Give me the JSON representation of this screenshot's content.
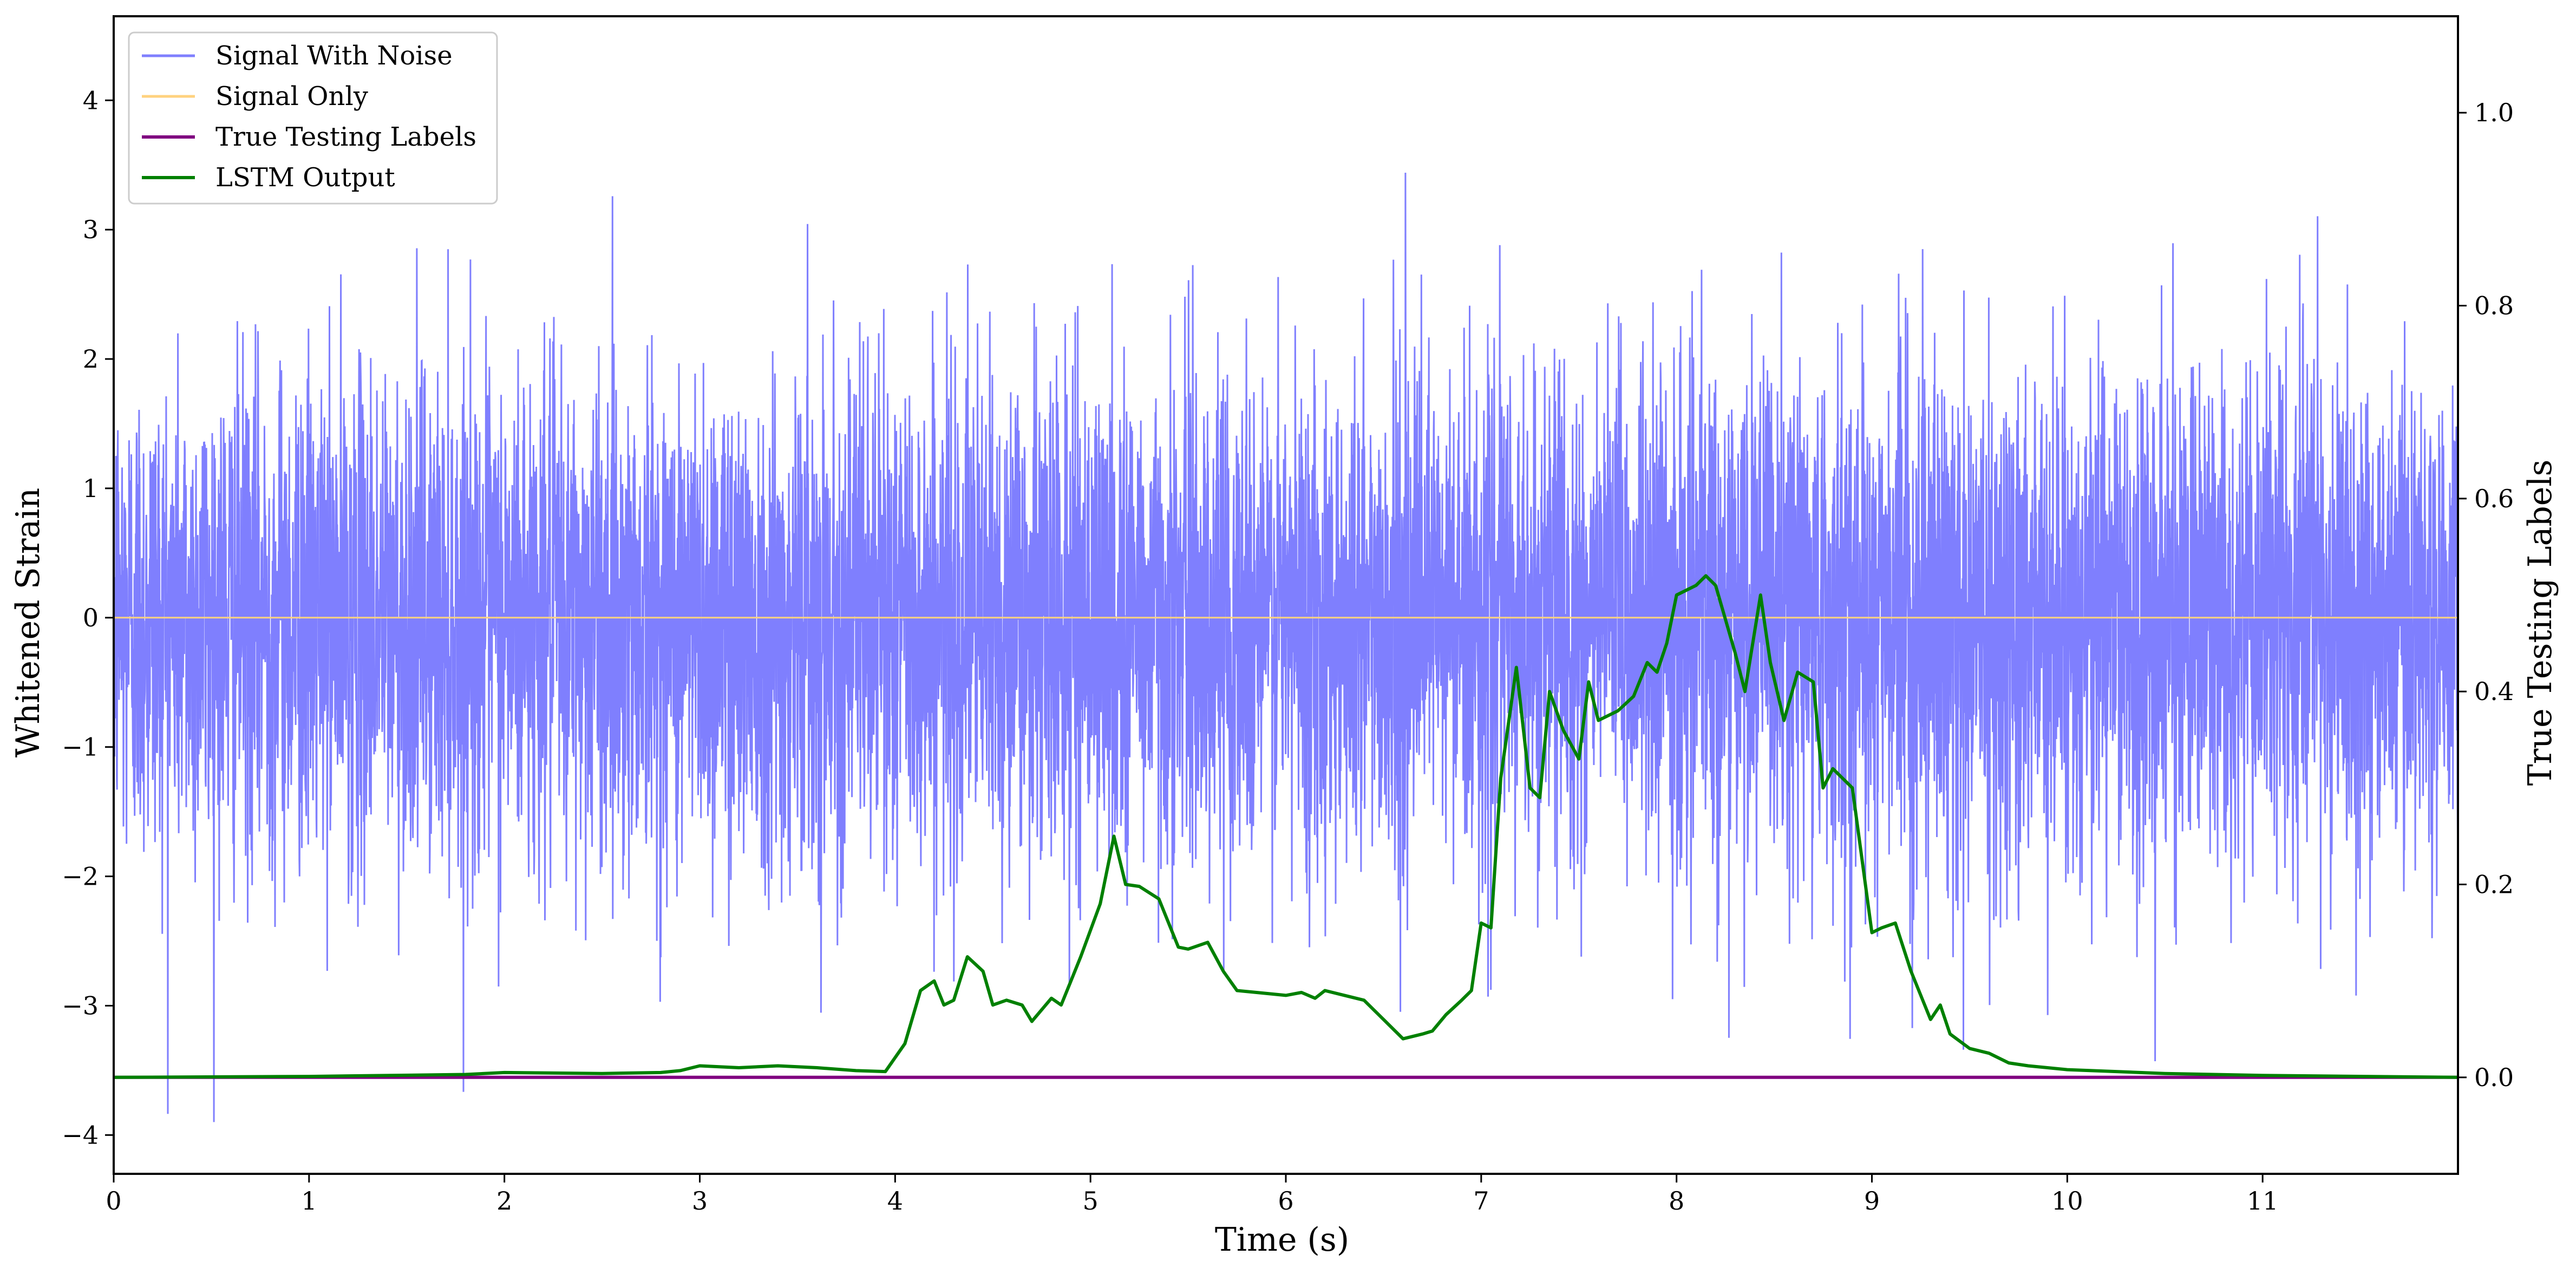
{
  "chart_data": {
    "type": "line",
    "xlabel": "Time (s)",
    "ylabel": "Whitened Strain",
    "y2label": "True Testing Labels",
    "xlim": [
      0,
      12
    ],
    "ylim": [
      -4.3,
      4.65
    ],
    "y2lim": [
      -0.1,
      1.1
    ],
    "xticks": [
      "0",
      "1",
      "2",
      "3",
      "4",
      "5",
      "6",
      "7",
      "8",
      "9",
      "10",
      "11"
    ],
    "yticks": [
      "4",
      "3",
      "2",
      "1",
      "0",
      "−1",
      "−2",
      "−3",
      "−4"
    ],
    "y2ticks": [
      "1.0",
      "0.8",
      "0.6",
      "0.4",
      "0.2",
      "0.0"
    ],
    "legend_position": "upper-left",
    "series": [
      {
        "name": "Signal With Noise",
        "axis": "left",
        "color": "#7f7ffe",
        "style": "dense noise, approx. N(0,1), range about -3.9 to 4.3"
      },
      {
        "name": "Signal Only",
        "axis": "left",
        "color": "#ffd27f",
        "x": [
          0,
          12
        ],
        "values": [
          0,
          0
        ]
      },
      {
        "name": "True Testing Labels",
        "axis": "right",
        "color": "#800080",
        "x": [
          0,
          12
        ],
        "values": [
          0,
          0
        ]
      },
      {
        "name": "LSTM Output",
        "axis": "right",
        "color": "#008000",
        "x": [
          0,
          1,
          1.8,
          2,
          2.5,
          2.8,
          2.9,
          3.0,
          3.2,
          3.4,
          3.6,
          3.8,
          3.95,
          4.05,
          4.13,
          4.2,
          4.25,
          4.3,
          4.37,
          4.45,
          4.5,
          4.57,
          4.65,
          4.7,
          4.8,
          4.85,
          4.9,
          4.95,
          5.05,
          5.12,
          5.18,
          5.25,
          5.35,
          5.45,
          5.5,
          5.6,
          5.68,
          5.75,
          5.85,
          6.0,
          6.08,
          6.15,
          6.2,
          6.3,
          6.4,
          6.5,
          6.6,
          6.7,
          6.75,
          6.82,
          6.9,
          6.95,
          7.0,
          7.05,
          7.1,
          7.18,
          7.25,
          7.3,
          7.35,
          7.42,
          7.5,
          7.55,
          7.6,
          7.7,
          7.78,
          7.85,
          7.9,
          7.95,
          8.0,
          8.1,
          8.15,
          8.2,
          8.3,
          8.35,
          8.43,
          8.48,
          8.55,
          8.62,
          8.7,
          8.75,
          8.8,
          8.85,
          8.9,
          9.0,
          9.05,
          9.12,
          9.2,
          9.3,
          9.35,
          9.4,
          9.5,
          9.6,
          9.7,
          9.8,
          10.0,
          10.5,
          11.0,
          12.0
        ],
        "values": [
          0.0,
          0.001,
          0.003,
          0.005,
          0.004,
          0.005,
          0.007,
          0.012,
          0.01,
          0.012,
          0.01,
          0.007,
          0.006,
          0.035,
          0.09,
          0.1,
          0.075,
          0.08,
          0.125,
          0.11,
          0.075,
          0.08,
          0.075,
          0.058,
          0.082,
          0.075,
          0.1,
          0.125,
          0.18,
          0.25,
          0.2,
          0.198,
          0.185,
          0.135,
          0.133,
          0.14,
          0.11,
          0.09,
          0.088,
          0.085,
          0.088,
          0.082,
          0.09,
          0.085,
          0.08,
          0.06,
          0.04,
          0.045,
          0.048,
          0.065,
          0.08,
          0.09,
          0.16,
          0.155,
          0.31,
          0.425,
          0.3,
          0.29,
          0.4,
          0.36,
          0.33,
          0.41,
          0.37,
          0.38,
          0.395,
          0.43,
          0.42,
          0.45,
          0.5,
          0.51,
          0.52,
          0.51,
          0.44,
          0.4,
          0.5,
          0.43,
          0.37,
          0.42,
          0.41,
          0.3,
          0.32,
          0.31,
          0.3,
          0.15,
          0.155,
          0.16,
          0.11,
          0.06,
          0.075,
          0.045,
          0.03,
          0.025,
          0.015,
          0.012,
          0.008,
          0.004,
          0.002,
          0.0
        ]
      }
    ]
  }
}
